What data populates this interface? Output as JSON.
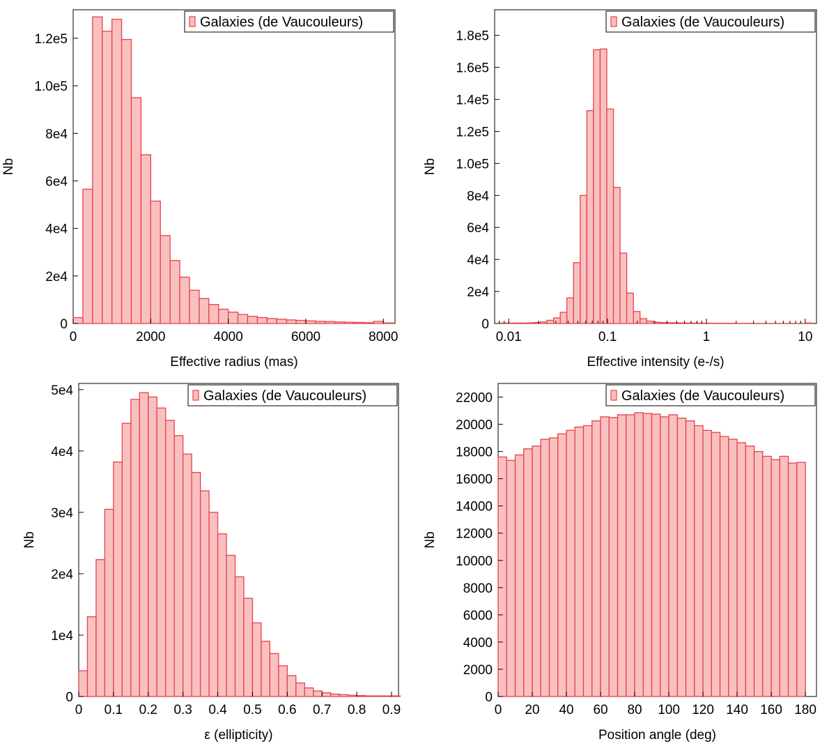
{
  "legend_label": "Galaxies (de Vaucouleurs)",
  "colors": {
    "bar_fill": "#f9c0c0",
    "bar_stroke": "#e8414a",
    "axis": "#000000"
  },
  "chart_data": [
    {
      "type": "bar",
      "xlabel": "Effective radius (mas)",
      "ylabel": "Nb",
      "xscale": "linear",
      "xlim": [
        0,
        8300
      ],
      "ylim": [
        0,
        132000
      ],
      "bin_start": 0,
      "bin_width": 250,
      "values": [
        2500,
        56500,
        129000,
        123000,
        128000,
        119500,
        95000,
        71000,
        51500,
        37000,
        26500,
        19500,
        14000,
        10500,
        8000,
        6000,
        4800,
        3800,
        3000,
        2500,
        2100,
        1800,
        1500,
        1300,
        1100,
        900,
        800,
        650,
        550,
        450,
        350,
        900,
        250
      ],
      "xticks": [
        {
          "value": 0,
          "label": "0"
        },
        {
          "value": 2000,
          "label": "2000"
        },
        {
          "value": 4000,
          "label": "4000"
        },
        {
          "value": 6000,
          "label": "6000"
        },
        {
          "value": 8000,
          "label": "8000"
        }
      ],
      "yticks": [
        {
          "value": 0,
          "label": "0"
        },
        {
          "value": 20000,
          "label": "2e4"
        },
        {
          "value": 40000,
          "label": "4e4"
        },
        {
          "value": 60000,
          "label": "6e4"
        },
        {
          "value": 80000,
          "label": "8e4"
        },
        {
          "value": 100000,
          "label": "1.0e5"
        },
        {
          "value": 120000,
          "label": "1.2e5"
        }
      ],
      "legend": "top-right"
    },
    {
      "type": "bar",
      "xlabel": "Effective intensity (e-/s)",
      "ylabel": "Nb",
      "xscale": "log",
      "xlim": [
        0.0072,
        13
      ],
      "ylim": [
        0,
        196000
      ],
      "bin_edges": [
        0.00824,
        0.00962,
        0.01123,
        0.01312,
        0.01531,
        0.01788,
        0.02087,
        0.02437,
        0.02845,
        0.03322,
        0.03878,
        0.04528,
        0.05286,
        0.06172,
        0.07205,
        0.08412,
        0.09822,
        0.1147,
        0.1339,
        0.1563,
        0.1825,
        0.2131,
        0.2488,
        0.2905,
        0.3391,
        0.3959,
        0.4623,
        0.5397,
        0.6301,
        0.7357,
        0.859,
        1.003,
        1.171,
        1.367,
        1.596,
        1.864,
        2.176,
        2.541,
        2.967,
        3.464,
        4.044,
        4.722,
        5.513,
        6.437,
        7.515,
        8.775,
        10.245,
        11.961
      ],
      "values": [
        300,
        300,
        300,
        300,
        400,
        600,
        1000,
        2000,
        3500,
        7000,
        16000,
        38000,
        80000,
        133000,
        171000,
        171500,
        134000,
        85000,
        44000,
        19000,
        7500,
        3000,
        1500,
        800,
        600,
        500,
        400,
        350,
        300,
        250,
        200,
        200,
        150,
        150,
        150,
        100,
        100,
        100,
        100,
        100,
        50,
        50,
        50,
        50,
        50,
        50,
        300
      ],
      "xticks": [
        {
          "value": 0.01,
          "label": "0.01"
        },
        {
          "value": 0.1,
          "label": "0.1"
        },
        {
          "value": 1,
          "label": "1"
        },
        {
          "value": 10,
          "label": "10"
        }
      ],
      "yticks": [
        {
          "value": 0,
          "label": "0"
        },
        {
          "value": 20000,
          "label": "2e4"
        },
        {
          "value": 40000,
          "label": "4e4"
        },
        {
          "value": 60000,
          "label": "6e4"
        },
        {
          "value": 80000,
          "label": "8e4"
        },
        {
          "value": 100000,
          "label": "1.0e5"
        },
        {
          "value": 120000,
          "label": "1.2e5"
        },
        {
          "value": 140000,
          "label": "1.4e5"
        },
        {
          "value": 160000,
          "label": "1.6e5"
        },
        {
          "value": 180000,
          "label": "1.8e5"
        }
      ],
      "legend": "top-right"
    },
    {
      "type": "bar",
      "xlabel": "ε (ellipticity)",
      "ylabel": "Nb",
      "xscale": "linear",
      "xlim": [
        0,
        0.92
      ],
      "ylim": [
        0,
        51000
      ],
      "bin_start": 0,
      "bin_width": 0.025,
      "values": [
        4200,
        13000,
        22300,
        30500,
        38200,
        44500,
        48400,
        49500,
        48800,
        47000,
        45000,
        42500,
        39500,
        36500,
        33500,
        30000,
        26500,
        23000,
        19500,
        16000,
        12000,
        9000,
        7000,
        5000,
        3400,
        2200,
        1400,
        900,
        600,
        400,
        300,
        200,
        150,
        100,
        100,
        100,
        100
      ],
      "xticks": [
        {
          "value": 0,
          "label": "0"
        },
        {
          "value": 0.1,
          "label": "0.1"
        },
        {
          "value": 0.2,
          "label": "0.2"
        },
        {
          "value": 0.3,
          "label": "0.3"
        },
        {
          "value": 0.4,
          "label": "0.4"
        },
        {
          "value": 0.5,
          "label": "0.5"
        },
        {
          "value": 0.6,
          "label": "0.6"
        },
        {
          "value": 0.7,
          "label": "0.7"
        },
        {
          "value": 0.8,
          "label": "0.8"
        },
        {
          "value": 0.9,
          "label": "0.9"
        }
      ],
      "yticks": [
        {
          "value": 0,
          "label": "0"
        },
        {
          "value": 10000,
          "label": "1e4"
        },
        {
          "value": 20000,
          "label": "2e4"
        },
        {
          "value": 30000,
          "label": "3e4"
        },
        {
          "value": 40000,
          "label": "4e4"
        },
        {
          "value": 50000,
          "label": "5e4"
        }
      ],
      "legend": "top-right"
    },
    {
      "type": "bar",
      "xlabel": "Position angle (deg)",
      "ylabel": "Nb",
      "xscale": "linear",
      "xlim": [
        0,
        186.5
      ],
      "ylim": [
        0,
        23000
      ],
      "bin_start": 0,
      "bin_width": 5,
      "values": [
        17600,
        17350,
        17750,
        18200,
        18400,
        18900,
        19000,
        19300,
        19550,
        19800,
        19900,
        20250,
        20550,
        20500,
        20700,
        20700,
        20850,
        20800,
        20750,
        20550,
        20700,
        20450,
        20250,
        19900,
        19550,
        19400,
        19100,
        18900,
        18650,
        18400,
        18000,
        17650,
        17400,
        17650,
        17150,
        17200
      ],
      "xticks": [
        {
          "value": 0,
          "label": "0"
        },
        {
          "value": 20,
          "label": "20"
        },
        {
          "value": 40,
          "label": "40"
        },
        {
          "value": 60,
          "label": "60"
        },
        {
          "value": 80,
          "label": "80"
        },
        {
          "value": 100,
          "label": "100"
        },
        {
          "value": 120,
          "label": "120"
        },
        {
          "value": 140,
          "label": "140"
        },
        {
          "value": 160,
          "label": "160"
        },
        {
          "value": 180,
          "label": "180"
        }
      ],
      "yticks": [
        {
          "value": 0,
          "label": "0"
        },
        {
          "value": 2000,
          "label": "2000"
        },
        {
          "value": 4000,
          "label": "4000"
        },
        {
          "value": 6000,
          "label": "6000"
        },
        {
          "value": 8000,
          "label": "8000"
        },
        {
          "value": 10000,
          "label": "10000"
        },
        {
          "value": 12000,
          "label": "12000"
        },
        {
          "value": 14000,
          "label": "14000"
        },
        {
          "value": 16000,
          "label": "16000"
        },
        {
          "value": 18000,
          "label": "18000"
        },
        {
          "value": 20000,
          "label": "20000"
        },
        {
          "value": 22000,
          "label": "22000"
        }
      ],
      "legend": "top-right"
    }
  ]
}
